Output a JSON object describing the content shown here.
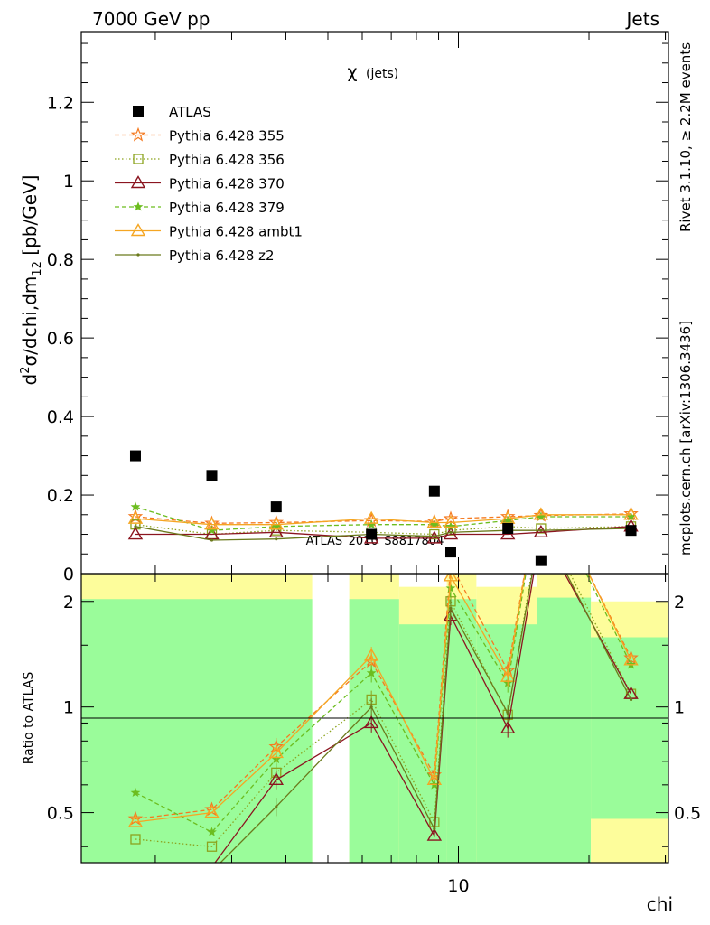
{
  "header": {
    "left": "7000 GeV pp",
    "right": "Jets"
  },
  "side": {
    "rivet": "Rivet 3.1.10, ≥ 2.2M events",
    "mcplots": "mcplots.cern.ch [arXiv:1306.3436]"
  },
  "main_panel": {
    "ylabel_parts": [
      "d",
      "2",
      "σ/dchi,dm",
      "12",
      " [pb/GeV]"
    ],
    "yticks": [
      "0",
      "0.2",
      "0.4",
      "0.6",
      "0.8",
      "1",
      "1.2"
    ],
    "inner_title": "χ",
    "inner_title_sub": "(jets)",
    "watermark": "ATLAS_2010_S8817804"
  },
  "ratio_panel": {
    "ylabel": "Ratio to ATLAS",
    "yticks": [
      "0.5",
      "1",
      "2"
    ]
  },
  "xlabel": "chi",
  "xticks": [
    "10"
  ],
  "colors": {
    "data": "#000000",
    "p355": "#f57a20",
    "p356": "#8ca31e",
    "p370": "#8b1520",
    "p379": "#6cbd1f",
    "ambt1": "#f5a623",
    "z2": "#6b7a1c",
    "band_green": "#9afc9a",
    "band_yellow": "#fdfd9b"
  },
  "chart_data": {
    "type": "line",
    "xscale": "log",
    "x": [
      1.8,
      2.7,
      3.8,
      6.3,
      8.8,
      9.6,
      13.0,
      15.5,
      25.0
    ],
    "xlim": [
      1.35,
      30.5
    ],
    "ylim_main": [
      0,
      1.38
    ],
    "ylim_ratio": [
      0.36,
      2.4
    ],
    "ratio_yscale": "log",
    "grid": false,
    "legend_position": "top-left",
    "data_series": {
      "name": "ATLAS",
      "values": [
        0.3,
        0.25,
        0.17,
        0.1,
        0.21,
        0.055,
        0.115,
        0.033,
        0.11
      ]
    },
    "mc_series": [
      {
        "name": "Pythia 6.428 355",
        "values": [
          0.145,
          0.128,
          0.13,
          0.135,
          0.133,
          0.14,
          0.145,
          0.148,
          0.152
        ],
        "ratio": [
          0.48,
          0.51,
          0.77,
          1.35,
          0.64,
          2.55,
          1.27,
          4.5,
          1.38
        ]
      },
      {
        "name": "Pythia 6.428 356",
        "values": [
          0.125,
          0.1,
          0.11,
          0.105,
          0.1,
          0.11,
          0.12,
          0.115,
          0.12
        ],
        "ratio": [
          0.42,
          0.4,
          0.65,
          1.05,
          0.47,
          2.0,
          0.95,
          3.5,
          1.09
        ]
      },
      {
        "name": "Pythia 6.428 370",
        "values": [
          0.1,
          0.1,
          0.105,
          0.09,
          0.09,
          0.1,
          0.1,
          0.105,
          0.12
        ],
        "ratio": [
          0.33,
          0.35,
          0.62,
          0.9,
          0.43,
          1.82,
          0.87,
          3.18,
          1.09
        ]
      },
      {
        "name": "Pythia 6.428 379",
        "values": [
          0.17,
          0.11,
          0.12,
          0.125,
          0.125,
          0.12,
          0.135,
          0.145,
          0.145
        ],
        "ratio": [
          0.57,
          0.44,
          0.71,
          1.25,
          0.6,
          2.18,
          1.17,
          4.4,
          1.32
        ]
      },
      {
        "name": "Pythia 6.428 ambt1",
        "values": [
          0.14,
          0.125,
          0.125,
          0.14,
          0.13,
          0.13,
          0.14,
          0.15,
          0.15
        ],
        "ratio": [
          0.47,
          0.5,
          0.74,
          1.4,
          0.62,
          2.36,
          1.22,
          4.55,
          1.36
        ]
      },
      {
        "name": "Pythia 6.428 z2",
        "values": [
          0.12,
          0.085,
          0.088,
          0.1,
          0.095,
          0.105,
          0.11,
          0.11,
          0.115
        ],
        "ratio": [
          0.4,
          0.34,
          0.52,
          1.0,
          0.45,
          1.91,
          0.96,
          3.33,
          1.05
        ]
      }
    ],
    "ratio_bands": [
      {
        "x0": 1.35,
        "x1": 4.6,
        "green": 2.03,
        "yellow": 2.4
      },
      {
        "x0": 5.6,
        "x1": 7.3,
        "green": 2.03,
        "yellow": 2.4
      },
      {
        "x0": 7.3,
        "x1": 9.4,
        "green": 1.72,
        "yellow": 2.2
      },
      {
        "x0": 9.4,
        "x1": 11.0,
        "green": 2.03,
        "yellow": 2.4
      },
      {
        "x0": 11.0,
        "x1": 15.2,
        "green": 1.72,
        "yellow": 2.2
      },
      {
        "x0": 15.2,
        "x1": 20.2,
        "green": 2.05,
        "yellow": 2.4
      },
      {
        "x0": 20.2,
        "x1": 30.5,
        "green": 1.58,
        "yellow": 2.0,
        "green_low": 0.36,
        "yellow_low_top": 0.48
      }
    ]
  }
}
